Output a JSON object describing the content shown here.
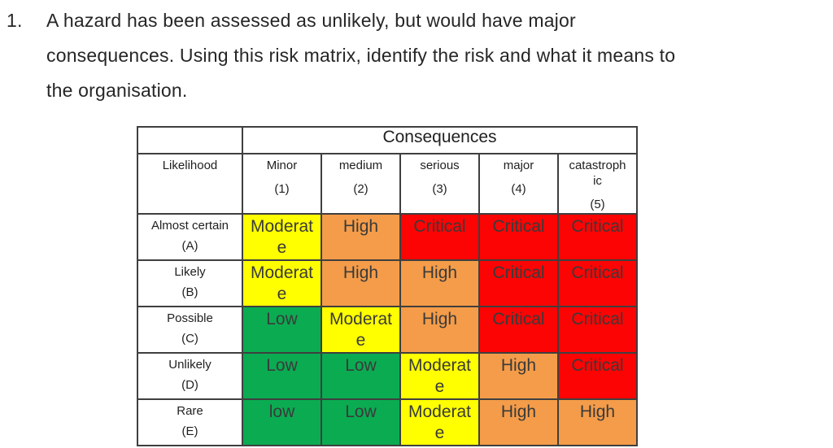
{
  "question": {
    "number": "1.",
    "lines": [
      "A hazard has been assessed as unlikely, but would have major",
      "consequences. Using this risk matrix, identify the risk and what it means to",
      "the organisation."
    ]
  },
  "matrix": {
    "consequences_header": "Consequences",
    "likelihood_header": "Likelihood",
    "columns": [
      {
        "label": "Minor",
        "code": "(1)"
      },
      {
        "label": "medium",
        "code": "(2)"
      },
      {
        "label": "serious",
        "code": "(3)"
      },
      {
        "label": "major",
        "code": "(4)"
      },
      {
        "label": "catastrophic",
        "code": "(5)"
      }
    ],
    "rows": [
      {
        "label": "Almost certain",
        "code": "(A)",
        "cells": [
          {
            "text": "Moderate",
            "level": "moderate"
          },
          {
            "text": "High",
            "level": "high"
          },
          {
            "text": "Critical",
            "level": "critical"
          },
          {
            "text": "Critical",
            "level": "critical"
          },
          {
            "text": "Critical",
            "level": "critical"
          }
        ]
      },
      {
        "label": "Likely",
        "code": "(B)",
        "cells": [
          {
            "text": "Moderate",
            "level": "moderate"
          },
          {
            "text": "High",
            "level": "high"
          },
          {
            "text": "High",
            "level": "high"
          },
          {
            "text": "Critical",
            "level": "critical"
          },
          {
            "text": "Critical",
            "level": "critical"
          }
        ]
      },
      {
        "label": "Possible",
        "code": "(C)",
        "cells": [
          {
            "text": "Low",
            "level": "low"
          },
          {
            "text": "Moderate",
            "level": "moderate"
          },
          {
            "text": "High",
            "level": "high"
          },
          {
            "text": "Critical",
            "level": "critical"
          },
          {
            "text": "Critical",
            "level": "critical"
          }
        ]
      },
      {
        "label": "Unlikely",
        "code": "(D)",
        "cells": [
          {
            "text": "Low",
            "level": "low"
          },
          {
            "text": "Low",
            "level": "low"
          },
          {
            "text": "Moderate",
            "level": "moderate"
          },
          {
            "text": "High",
            "level": "high"
          },
          {
            "text": "Critical",
            "level": "critical"
          }
        ]
      },
      {
        "label": "Rare",
        "code": "(E)",
        "cells": [
          {
            "text": "low",
            "level": "low"
          },
          {
            "text": "Low",
            "level": "low"
          },
          {
            "text": "Moderate",
            "level": "moderate"
          },
          {
            "text": "High",
            "level": "high"
          },
          {
            "text": "High",
            "level": "high"
          }
        ]
      }
    ],
    "level_colors": {
      "low": "#0BAB52",
      "moderate": "#FFFF00",
      "high": "#F49C49",
      "critical": "#FC0404"
    }
  }
}
